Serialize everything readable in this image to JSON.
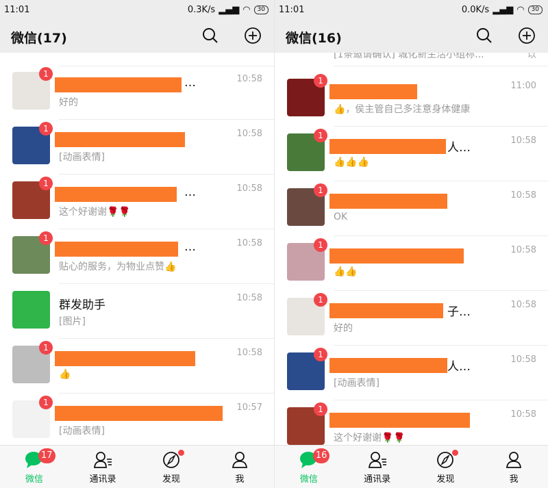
{
  "panels": [
    {
      "status": {
        "time": "11:01",
        "speed": "0.3K/s",
        "battery": "30"
      },
      "header": {
        "title": "微信(17)"
      },
      "partial_row": {
        "preview": ""
      },
      "rows": [
        {
          "name": "…",
          "preview": "好的",
          "time": "10:58",
          "badge": "1",
          "avatar_color": "#e8e4e0",
          "redact_width": 185
        },
        {
          "name": "",
          "preview": "[动画表情]",
          "time": "10:58",
          "badge": "1",
          "avatar_color": "#2a4c8c",
          "redact_width": 190
        },
        {
          "name": "…",
          "preview": "这个好谢谢🌹🌹",
          "time": "10:58",
          "badge": "1",
          "avatar_color": "#9a3a2a",
          "redact_width": 178
        },
        {
          "name": "…",
          "preview": "贴心的服务，为物业点赞👍",
          "time": "10:58",
          "badge": "1",
          "avatar_color": "#6d8a5a",
          "redact_width": 180
        },
        {
          "name": "群发助手",
          "preview": "[图片]",
          "time": "10:58",
          "badge": "",
          "avatar_color": "#2fb54a",
          "redact_width": 0
        },
        {
          "name": "",
          "preview": "👍",
          "time": "10:58",
          "badge": "1",
          "avatar_color": "#bdbdbd",
          "redact_width": 205
        },
        {
          "name": "",
          "preview": "[动画表情]",
          "time": "10:57",
          "badge": "1",
          "avatar_color": "#f2f2f2",
          "redact_width": 245
        }
      ],
      "nav": [
        {
          "label": "微信",
          "badge": "17"
        },
        {
          "label": "通讯录"
        },
        {
          "label": "发现"
        },
        {
          "label": "我"
        }
      ]
    },
    {
      "status": {
        "time": "11:01",
        "speed": "0.0K/s",
        "battery": "30"
      },
      "header": {
        "title": "微信(16)"
      },
      "partial_row": {
        "preview": "[1条邀请确认] 城化新生活小组称...",
        "time": "以"
      },
      "rows": [
        {
          "name": "",
          "preview": "👍，侯主管自己多注意身体健康",
          "time": "11:00",
          "badge": "1",
          "avatar_color": "#7a1a1a",
          "redact_width": 128
        },
        {
          "name": "人…",
          "preview": "👍👍👍",
          "time": "10:58",
          "badge": "1",
          "avatar_color": "#4a7a3a",
          "redact_width": 170
        },
        {
          "name": "",
          "preview": "OK",
          "time": "10:58",
          "badge": "1",
          "avatar_color": "#6a4a40",
          "redact_width": 172
        },
        {
          "name": "",
          "preview": "👍👍",
          "time": "10:58",
          "badge": "1",
          "avatar_color": "#c9a0a8",
          "redact_width": 196
        },
        {
          "name": "子…",
          "preview": "好的",
          "time": "10:58",
          "badge": "1",
          "avatar_color": "#e8e4e0",
          "redact_width": 166
        },
        {
          "name": "人…",
          "preview": "[动画表情]",
          "time": "10:58",
          "badge": "1",
          "avatar_color": "#2a4c8c",
          "redact_width": 172
        },
        {
          "name": "",
          "preview": "这个好谢谢🌹🌹",
          "time": "10:58",
          "badge": "1",
          "avatar_color": "#9a3a2a",
          "redact_width": 205
        }
      ],
      "nav": [
        {
          "label": "微信",
          "badge": "16"
        },
        {
          "label": "通讯录"
        },
        {
          "label": "发现"
        },
        {
          "label": "我"
        }
      ]
    }
  ],
  "colors": {
    "accent": "#07c160",
    "badge": "#f0454a",
    "redaction": "#fa7a2a"
  }
}
